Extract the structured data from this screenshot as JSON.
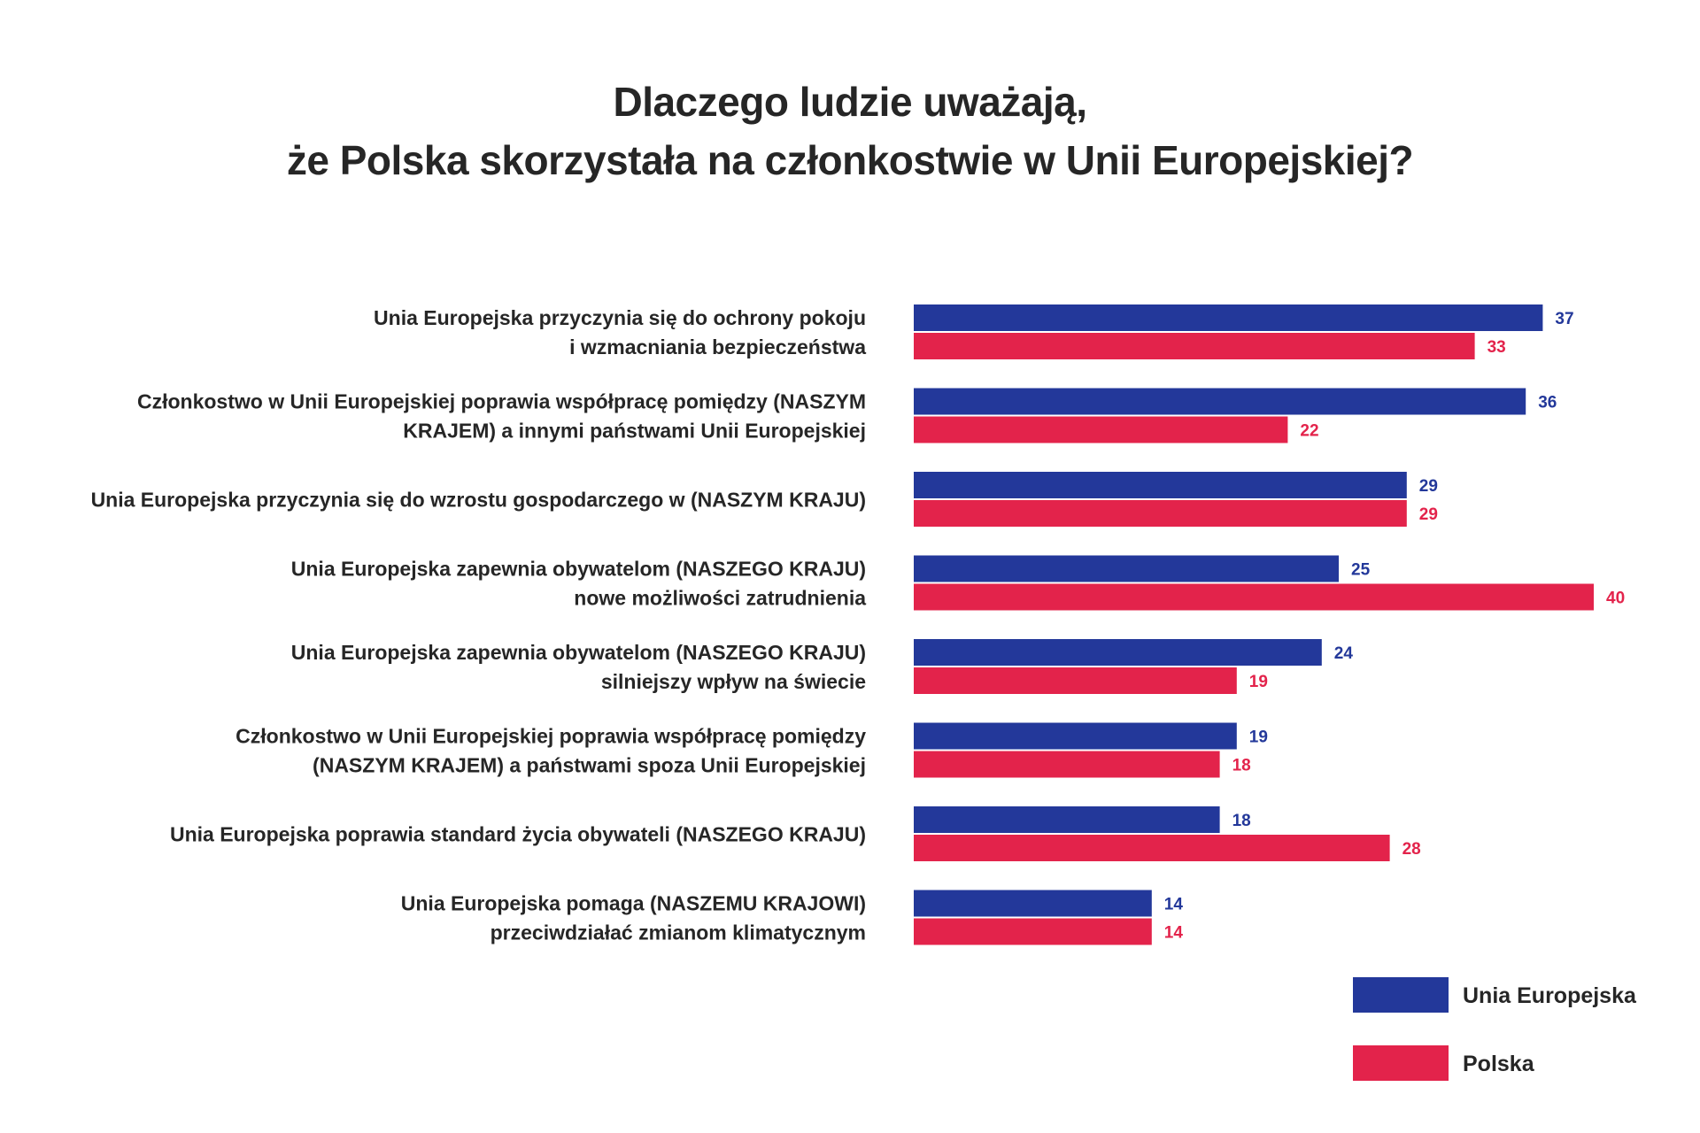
{
  "chart_data": {
    "type": "bar",
    "orientation": "horizontal",
    "title": [
      "Dlaczego ludzie uważają,",
      "że Polska skorzystała na członkostwie w Unii Europejskiej?"
    ],
    "categories": [
      [
        "Unia Europejska  przyczynia się do ochrony pokoju",
        "i wzmacniania bezpieczeństwa"
      ],
      [
        "Członkostwo w Unii Europejskiej poprawia współpracę pomiędzy (NASZYM",
        "KRAJEM) a innymi państwami Unii Europejskiej"
      ],
      [
        "Unia Europejska przyczynia się do wzrostu gospodarczego w (NASZYM KRAJU)"
      ],
      [
        "Unia Europejska zapewnia obywatelom (NASZEGO KRAJU)",
        "nowe możliwości zatrudnienia"
      ],
      [
        "Unia Europejska zapewnia obywatelom (NASZEGO KRAJU)",
        "silniejszy wpływ na świecie"
      ],
      [
        "Członkostwo w Unii Europejskiej poprawia współpracę pomiędzy",
        "(NASZYM KRAJEM) a państwami spoza Unii Europejskiej"
      ],
      [
        "Unia Europejska poprawia standard życia obywateli (NASZEGO KRAJU)"
      ],
      [
        "Unia Europejska pomaga (NASZEMU KRAJOWI)",
        "przeciwdziałać zmianom klimatycznym"
      ]
    ],
    "series": [
      {
        "name": "Unia Europejska",
        "color": "#23389a",
        "values": [
          37,
          36,
          29,
          25,
          24,
          19,
          18,
          14
        ]
      },
      {
        "name": "Polska",
        "color": "#e3234b",
        "values": [
          33,
          22,
          29,
          40,
          19,
          18,
          28,
          14
        ]
      }
    ],
    "xlim": [
      0,
      40
    ],
    "grid": false,
    "legend_position": "bottom-right",
    "data_labels": true
  }
}
